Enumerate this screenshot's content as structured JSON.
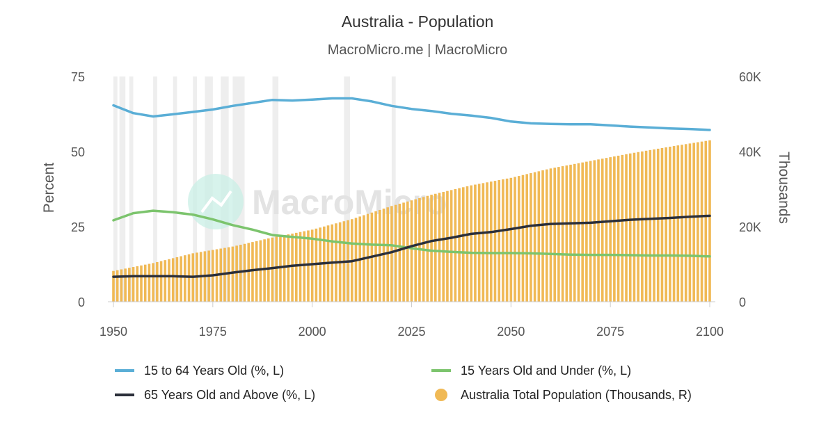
{
  "chart_data": {
    "type": "bar+line",
    "title": "Australia - Population",
    "subtitle": "MacroMicro.me | MacroMicro",
    "watermark": "MacroMicro",
    "x_ticks": [
      "1950",
      "1975",
      "2000",
      "2025",
      "2050",
      "2075",
      "2100"
    ],
    "xlim": [
      1950,
      2100
    ],
    "y_left": {
      "label": "Percent",
      "lim": [
        0,
        75
      ],
      "ticks": [
        "0",
        "25",
        "50",
        "75"
      ]
    },
    "y_right": {
      "label": "Thousands",
      "lim": [
        0,
        60000
      ],
      "ticks": [
        "0",
        "20K",
        "40K",
        "60K"
      ]
    },
    "recession_bands": [
      [
        1950,
        1951
      ],
      [
        1951.5,
        1953
      ],
      [
        1954,
        1955
      ],
      [
        1960,
        1961
      ],
      [
        1965,
        1966
      ],
      [
        1970,
        1971
      ],
      [
        1973,
        1975
      ],
      [
        1977,
        1979
      ],
      [
        1980,
        1983
      ],
      [
        1990,
        1991.5
      ],
      [
        2008,
        2009.5
      ],
      [
        2020,
        2021
      ]
    ],
    "series": [
      {
        "name": "15 to 64 Years Old (%, L)",
        "type": "line",
        "axis": "left",
        "color": "#5aaed6",
        "x": [
          1950,
          1955,
          1960,
          1965,
          1970,
          1975,
          1980,
          1985,
          1990,
          1995,
          2000,
          2005,
          2010,
          2015,
          2020,
          2025,
          2030,
          2035,
          2040,
          2045,
          2050,
          2055,
          2060,
          2065,
          2070,
          2075,
          2080,
          2085,
          2090,
          2095,
          2100
        ],
        "y": [
          65.4,
          62.8,
          61.7,
          62.4,
          63.2,
          64.0,
          65.2,
          66.2,
          67.2,
          67.0,
          67.3,
          67.7,
          67.7,
          66.7,
          65.2,
          64.2,
          63.5,
          62.6,
          62.0,
          61.2,
          60.0,
          59.4,
          59.2,
          59.1,
          59.1,
          58.7,
          58.3,
          58.0,
          57.7,
          57.5,
          57.2
        ]
      },
      {
        "name": "15 Years Old and Under (%, L)",
        "type": "line",
        "axis": "left",
        "color": "#7cc46d",
        "x": [
          1950,
          1955,
          1960,
          1965,
          1970,
          1975,
          1980,
          1985,
          1990,
          1995,
          2000,
          2005,
          2010,
          2015,
          2020,
          2025,
          2030,
          2035,
          2040,
          2045,
          2050,
          2055,
          2060,
          2065,
          2070,
          2075,
          2080,
          2085,
          2090,
          2095,
          2100
        ],
        "y": [
          27.1,
          29.5,
          30.3,
          29.8,
          29.0,
          27.4,
          25.5,
          24.0,
          22.2,
          21.6,
          21.0,
          20.1,
          19.4,
          19.0,
          18.8,
          17.8,
          17.0,
          16.6,
          16.3,
          16.2,
          16.2,
          16.1,
          15.9,
          15.7,
          15.6,
          15.6,
          15.5,
          15.4,
          15.4,
          15.3,
          15.1
        ]
      },
      {
        "name": "65 Years Old and Above (%, L)",
        "type": "line",
        "axis": "left",
        "color": "#2b2f3a",
        "x": [
          1950,
          1955,
          1960,
          1965,
          1970,
          1975,
          1980,
          1985,
          1990,
          1995,
          2000,
          2005,
          2010,
          2015,
          2020,
          2025,
          2030,
          2035,
          2040,
          2045,
          2050,
          2055,
          2060,
          2065,
          2070,
          2075,
          2080,
          2085,
          2090,
          2095,
          2100
        ],
        "y": [
          8.3,
          8.5,
          8.5,
          8.5,
          8.3,
          8.8,
          9.7,
          10.5,
          11.2,
          12.0,
          12.5,
          13.0,
          13.5,
          15.0,
          16.5,
          18.5,
          20.2,
          21.3,
          22.6,
          23.2,
          24.2,
          25.3,
          25.9,
          26.1,
          26.3,
          26.8,
          27.3,
          27.6,
          27.9,
          28.3,
          28.6
        ]
      },
      {
        "name": "Australia Total Population (Thousands, R)",
        "type": "bar",
        "axis": "right",
        "color": "#f0b955",
        "x": [
          1950,
          1960,
          1970,
          1980,
          1990,
          2000,
          2010,
          2020,
          2030,
          2040,
          2050,
          2060,
          2070,
          2080,
          2090,
          2100
        ],
        "y": [
          8200,
          10300,
          12900,
          14700,
          17100,
          19200,
          22000,
          25500,
          28500,
          31000,
          33000,
          35500,
          37500,
          39500,
          41300,
          43000
        ]
      }
    ]
  }
}
